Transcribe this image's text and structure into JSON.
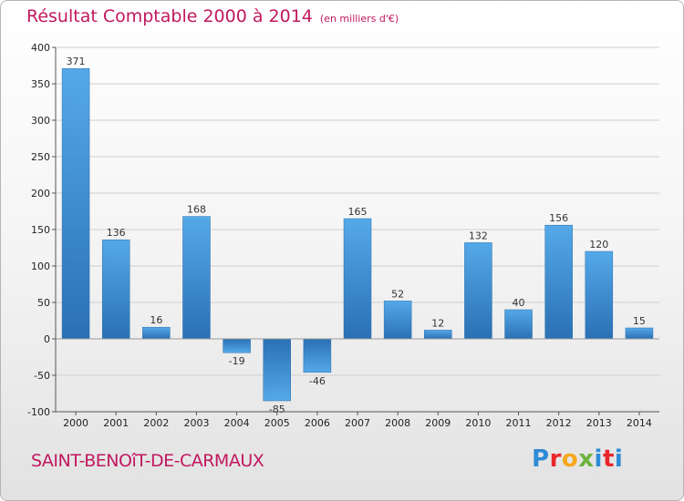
{
  "header": {
    "title": "Résultat Comptable 2000 à 2014",
    "subtitle": "(en milliers d'€)"
  },
  "footer": {
    "city": "SAINT-BENOîT-DE-CARMAUX",
    "brand_letters": [
      "P",
      "r",
      "o",
      "x",
      "i",
      "t",
      "i"
    ],
    "brand_colors": [
      "#2e8bd6",
      "#e8262b",
      "#f7a81b",
      "#6cb33e",
      "#2e8bd6",
      "#e8262b",
      "#2e8bd6"
    ]
  },
  "chart_data": {
    "type": "bar",
    "title": "Résultat Comptable 2000 à 2014",
    "unit": "(en milliers d'€)",
    "categories": [
      "2000",
      "2001",
      "2002",
      "2003",
      "2004",
      "2005",
      "2006",
      "2007",
      "2008",
      "2009",
      "2010",
      "2011",
      "2012",
      "2013",
      "2014"
    ],
    "values": [
      371,
      136,
      16,
      168,
      -19,
      -85,
      -46,
      165,
      52,
      12,
      132,
      40,
      156,
      120,
      15
    ],
    "ylim": [
      -100,
      400
    ],
    "yticks": [
      -100,
      -50,
      0,
      50,
      100,
      150,
      200,
      250,
      300,
      350,
      400
    ],
    "grid": true,
    "bar_color": "#3c8fd4",
    "bar_color_dark": "#2a70b4"
  }
}
